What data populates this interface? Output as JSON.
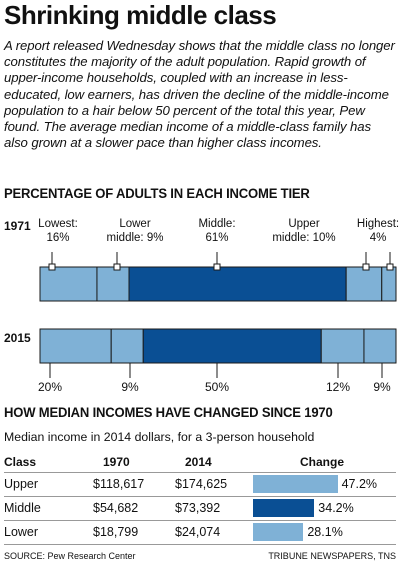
{
  "headline": "Shrinking middle class",
  "intro": "A report released Wednesday shows that the middle class no longer constitutes the majority of the adult population. Rapid growth of upper-income households, coupled with an increase in less-educated, low earners, has driven the decline of the middle-income population to a hair below 50 percent of the total this year, Pew found. The average median income of a middle-class family has also grown at a slower pace than higher class incomes.",
  "source": "SOURCE: Pew Research Center",
  "credit": "TRIBUNE NEWSPAPERS, TNS",
  "colors": {
    "light": "#7fb1d6",
    "dark": "#0a4f94",
    "outline": "#1a1a1a"
  },
  "chart_data": [
    {
      "type": "bar",
      "title": "PERCENTAGE OF ADULTS IN EACH INCOME TIER",
      "orientation": "horizontal-stacked",
      "years": [
        {
          "year": "1971",
          "segments": [
            {
              "tier": "Lowest",
              "value": 16,
              "label_line1": "Lowest:",
              "label_line2": "16%",
              "shade": "light"
            },
            {
              "tier": "Lower middle",
              "value": 9,
              "label_line1": "Lower",
              "label_line2": "middle: 9%",
              "shade": "light"
            },
            {
              "tier": "Middle",
              "value": 61,
              "label_line1": "Middle:",
              "label_line2": "61%",
              "shade": "dark"
            },
            {
              "tier": "Upper middle",
              "value": 10,
              "label_line1": "Upper",
              "label_line2": "middle: 10%",
              "shade": "light"
            },
            {
              "tier": "Highest",
              "value": 4,
              "label_line1": "Highest:",
              "label_line2": "4%",
              "shade": "light"
            }
          ]
        },
        {
          "year": "2015",
          "segments": [
            {
              "tier": "Lowest",
              "value": 20,
              "label": "20%",
              "shade": "light"
            },
            {
              "tier": "Lower middle",
              "value": 9,
              "label": "9%",
              "shade": "light"
            },
            {
              "tier": "Middle",
              "value": 50,
              "label": "50%",
              "shade": "dark"
            },
            {
              "tier": "Upper middle",
              "value": 12,
              "label": "12%",
              "shade": "light"
            },
            {
              "tier": "Highest",
              "value": 9,
              "label": "9%",
              "shade": "light"
            }
          ]
        }
      ]
    },
    {
      "type": "table",
      "title": "HOW MEDIAN INCOMES HAVE CHANGED SINCE 1970",
      "subtitle": "Median income in 2014 dollars, for a 3-person household",
      "columns": [
        "Class",
        "1970",
        "2014",
        "Change"
      ],
      "rows": [
        {
          "class": "Upper",
          "v1970": "$118,617",
          "v2014": "$174,625",
          "change": 47.2,
          "change_label": "47.2%",
          "shade": "light"
        },
        {
          "class": "Middle",
          "v1970": "$54,682",
          "v2014": "$73,392",
          "change": 34.2,
          "change_label": "34.2%",
          "shade": "dark"
        },
        {
          "class": "Lower",
          "v1970": "$18,799",
          "v2014": "$24,074",
          "change": 28.1,
          "change_label": "28.1%",
          "shade": "light"
        }
      ]
    }
  ]
}
